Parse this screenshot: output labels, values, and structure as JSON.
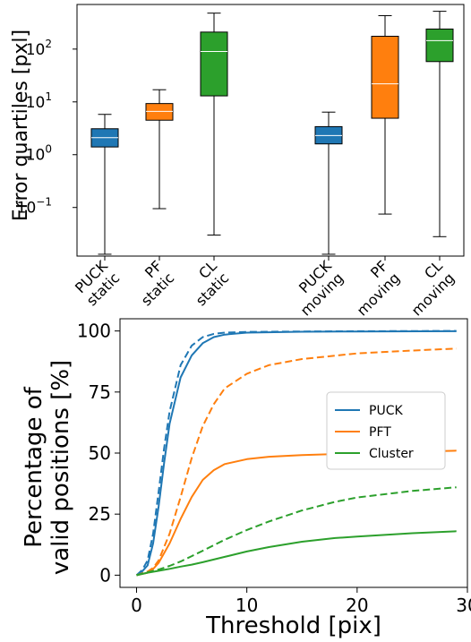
{
  "chart_data": [
    {
      "type": "boxplot",
      "ylabel": "Error quartiles [pxl]",
      "yscale": "log",
      "ylim": [
        0.012,
        700
      ],
      "yticks": [
        {
          "value": 0.1,
          "base": "10",
          "exp": "−1"
        },
        {
          "value": 1,
          "base": "10",
          "exp": "0"
        },
        {
          "value": 10,
          "base": "10",
          "exp": "1"
        },
        {
          "value": 100,
          "base": "10",
          "exp": "2"
        }
      ],
      "boxes": [
        {
          "label_line1": "PUCK",
          "label_line2": "static",
          "color": "#1f77b4",
          "whisker_low": 0.013,
          "q1": 1.4,
          "median": 2.1,
          "q3": 3.1,
          "whisker_high": 5.8
        },
        {
          "label_line1": "PF",
          "label_line2": "static",
          "color": "#ff7f0e",
          "whisker_low": 0.095,
          "q1": 4.5,
          "median": 6.6,
          "q3": 9.3,
          "whisker_high": 17
        },
        {
          "label_line1": "CL",
          "label_line2": "static",
          "color": "#2ca02c",
          "whisker_low": 0.03,
          "q1": 13,
          "median": 90,
          "q3": 210,
          "whisker_high": 480
        },
        {
          "label_line1": "PUCK",
          "label_line2": "moving",
          "color": "#1f77b4",
          "whisker_low": 0.013,
          "q1": 1.6,
          "median": 2.3,
          "q3": 3.4,
          "whisker_high": 6.4
        },
        {
          "label_line1": "PF",
          "label_line2": "moving",
          "color": "#ff7f0e",
          "whisker_low": 0.075,
          "q1": 4.9,
          "median": 22,
          "q3": 175,
          "whisker_high": 430
        },
        {
          "label_line1": "CL",
          "label_line2": "moving",
          "color": "#2ca02c",
          "whisker_low": 0.028,
          "q1": 58,
          "median": 145,
          "q3": 240,
          "whisker_high": 520
        }
      ]
    },
    {
      "type": "line",
      "xlabel": "Threshold [pix]",
      "ylabel_line1": "Percentage of",
      "ylabel_line2": "valid positions [%]",
      "xlim": [
        -1.5,
        30
      ],
      "ylim": [
        -5,
        105
      ],
      "xticks": [
        0,
        10,
        20,
        30
      ],
      "yticks": [
        0,
        25,
        50,
        75,
        100
      ],
      "legend_position": "center-right",
      "series": [
        {
          "name": "PUCK",
          "color": "#1f77b4",
          "style": "solid",
          "x": [
            0,
            0.5,
            1,
            1.5,
            2,
            2.5,
            3,
            4,
            5,
            6,
            7,
            8,
            10,
            15,
            20,
            29
          ],
          "y": [
            0,
            1.5,
            4,
            13,
            28,
            46,
            62,
            81,
            90,
            95,
            97.5,
            98.5,
            99.3,
            99.7,
            99.8,
            99.9
          ]
        },
        {
          "name": "PUCK (dashed)",
          "color": "#1f77b4",
          "style": "dashed",
          "x": [
            0,
            0.5,
            1,
            1.5,
            2,
            2.5,
            3,
            4,
            5,
            6,
            7,
            8,
            10,
            15,
            20,
            29
          ],
          "y": [
            0,
            2,
            6,
            17,
            34,
            52,
            67,
            86,
            94,
            97.5,
            98.8,
            99.3,
            99.6,
            99.8,
            99.9,
            100
          ]
        },
        {
          "name": "PFT",
          "color": "#ff7f0e",
          "style": "solid",
          "x": [
            0,
            1,
            1.5,
            2,
            3,
            4,
            5,
            6,
            7,
            8,
            10,
            12,
            15,
            20,
            25,
            29
          ],
          "y": [
            0,
            1,
            2.5,
            5,
            13,
            23,
            32,
            39,
            43,
            45.5,
            47.5,
            48.5,
            49.2,
            49.9,
            50.5,
            51
          ]
        },
        {
          "name": "PFT (dashed)",
          "color": "#ff7f0e",
          "style": "dashed",
          "x": [
            0,
            1,
            1.5,
            2,
            3,
            4,
            5,
            6,
            7,
            8,
            10,
            12,
            15,
            20,
            25,
            29
          ],
          "y": [
            0,
            1.5,
            3,
            6,
            17,
            32,
            48,
            61,
            70,
            76.5,
            82.5,
            86,
            88.5,
            90.8,
            92,
            92.8
          ]
        },
        {
          "name": "Cluster",
          "color": "#2ca02c",
          "style": "solid",
          "x": [
            0,
            1,
            2,
            3,
            4,
            5,
            6,
            8,
            10,
            12,
            15,
            18,
            20,
            25,
            29
          ],
          "y": [
            0,
            1,
            1.8,
            2.6,
            3.5,
            4.3,
            5.3,
            7.5,
            9.7,
            11.5,
            13.7,
            15.2,
            15.8,
            17.2,
            18
          ]
        },
        {
          "name": "Cluster (dashed)",
          "color": "#2ca02c",
          "style": "dashed",
          "x": [
            0,
            1,
            2,
            3,
            4,
            5,
            6,
            8,
            10,
            12,
            15,
            18,
            20,
            25,
            29
          ],
          "y": [
            0,
            1.2,
            2.3,
            3.8,
            5.6,
            7.8,
            10,
            14.5,
            18.5,
            22,
            26.5,
            30,
            31.8,
            34.5,
            36
          ]
        }
      ],
      "legend": [
        {
          "name": "PUCK",
          "color": "#1f77b4"
        },
        {
          "name": "PFT",
          "color": "#ff7f0e"
        },
        {
          "name": "Cluster",
          "color": "#2ca02c"
        }
      ]
    }
  ]
}
